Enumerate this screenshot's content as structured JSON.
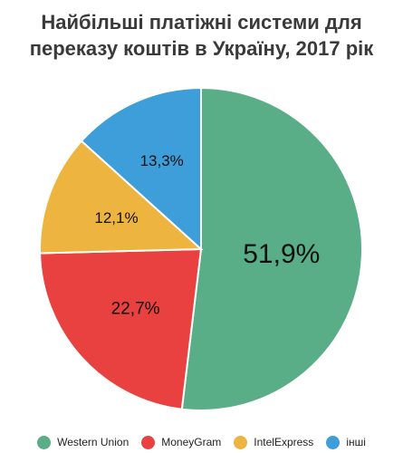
{
  "chart_data": {
    "type": "pie",
    "title": "Найбільші платіжні системи для переказу коштів в Україну, 2017 рік",
    "title_lines": [
      "Найбільші платіжні системи для",
      "переказу коштів в Україну, 2017 рік"
    ],
    "categories": [
      "Western Union",
      "MoneyGram",
      "IntelExpress",
      "інші"
    ],
    "values": [
      51.9,
      22.7,
      12.1,
      13.3
    ],
    "value_labels": [
      "51,9%",
      "22,7%",
      "12,1%",
      "13,3%"
    ],
    "colors": [
      "#5aae87",
      "#e8413f",
      "#edb43f",
      "#3d9ed9"
    ],
    "legend_position": "bottom"
  }
}
